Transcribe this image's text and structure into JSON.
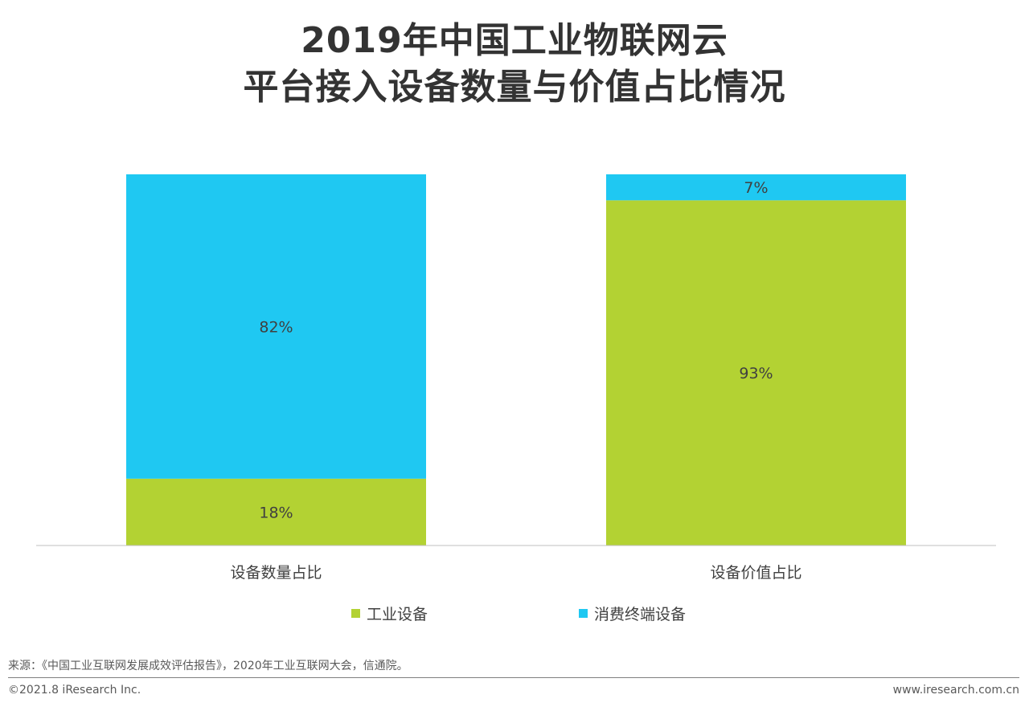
{
  "title_line1": "2019年中国工业物联网云",
  "title_line2": "平台接入设备数量与价值占比情况",
  "chart_data": {
    "type": "bar",
    "stacked": true,
    "percent": true,
    "categories": [
      "设备数量占比",
      "设备价值占比"
    ],
    "series": [
      {
        "name": "工业设备",
        "values": [
          18,
          93
        ],
        "labels": [
          "18%",
          "93%"
        ],
        "color": "#b3d233"
      },
      {
        "name": "消费终端设备",
        "values": [
          82,
          7
        ],
        "labels": [
          "82%",
          "7%"
        ],
        "color": "#1fc8f2"
      }
    ],
    "ylim": [
      0,
      100
    ],
    "grid": false,
    "legend": "bottom"
  },
  "source": "来源：《中国工业互联网发展成效评估报告》，2020年工业互联网大会，信通院。",
  "footer_left": "©2021.8 iResearch Inc.",
  "footer_right": "www.iresearch.com.cn"
}
